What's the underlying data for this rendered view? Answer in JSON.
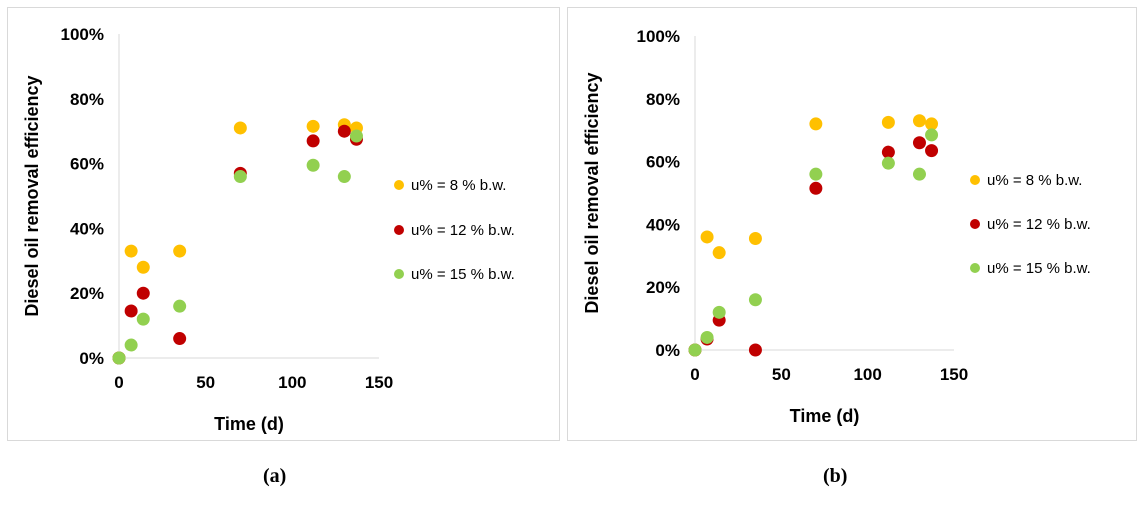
{
  "chart_data": [
    {
      "type": "scatter",
      "title": "",
      "xlabel": "Time (d)",
      "ylabel": "Diesel oil removal efficiency",
      "xlim": [
        0,
        150
      ],
      "ylim": [
        0,
        100
      ],
      "xticks": [
        "0",
        "50",
        "100",
        "150"
      ],
      "yticks": [
        "0%",
        "20%",
        "40%",
        "60%",
        "80%",
        "100%"
      ],
      "grid": false,
      "legend_position": "right",
      "series": [
        {
          "name": "u% = 8 % b.w.",
          "color": "#ffc000",
          "points": [
            [
              0,
              0
            ],
            [
              7,
              33
            ],
            [
              14,
              28
            ],
            [
              35,
              33
            ],
            [
              70,
              71
            ],
            [
              112,
              71.5
            ],
            [
              130,
              72
            ],
            [
              137,
              71
            ]
          ]
        },
        {
          "name": "u% = 12 % b.w.",
          "color": "#c00000",
          "points": [
            [
              0,
              0
            ],
            [
              7,
              14.5
            ],
            [
              14,
              20
            ],
            [
              35,
              6
            ],
            [
              70,
              57
            ],
            [
              112,
              67
            ],
            [
              130,
              70
            ],
            [
              137,
              67.5
            ]
          ]
        },
        {
          "name": "u% = 15 % b.w.",
          "color": "#92d050",
          "points": [
            [
              0,
              0
            ],
            [
              7,
              4
            ],
            [
              14,
              12
            ],
            [
              35,
              16
            ],
            [
              70,
              56
            ],
            [
              112,
              59.5
            ],
            [
              130,
              56
            ],
            [
              137,
              68.5
            ]
          ]
        }
      ]
    },
    {
      "type": "scatter",
      "title": "",
      "xlabel": "Time (d)",
      "ylabel": "Diesel oil removal efficiency",
      "xlim": [
        0,
        150
      ],
      "ylim": [
        0,
        100
      ],
      "xticks": [
        "0",
        "50",
        "100",
        "150"
      ],
      "yticks": [
        "0%",
        "20%",
        "40%",
        "60%",
        "80%",
        "100%"
      ],
      "grid": false,
      "legend_position": "right",
      "series": [
        {
          "name": "u% = 8 % b.w.",
          "color": "#ffc000",
          "points": [
            [
              0,
              0
            ],
            [
              7,
              36
            ],
            [
              14,
              31
            ],
            [
              35,
              35.5
            ],
            [
              70,
              72
            ],
            [
              112,
              72.5
            ],
            [
              130,
              73
            ],
            [
              137,
              72
            ]
          ]
        },
        {
          "name": "u% = 12 % b.w.",
          "color": "#c00000",
          "points": [
            [
              0,
              0
            ],
            [
              7,
              3.5
            ],
            [
              14,
              9.5
            ],
            [
              35,
              0
            ],
            [
              70,
              51.5
            ],
            [
              112,
              63
            ],
            [
              130,
              66
            ],
            [
              137,
              63.5
            ]
          ]
        },
        {
          "name": "u% = 15 % b.w.",
          "color": "#92d050",
          "points": [
            [
              0,
              0
            ],
            [
              7,
              4
            ],
            [
              14,
              12
            ],
            [
              35,
              16
            ],
            [
              70,
              56
            ],
            [
              112,
              59.5
            ],
            [
              130,
              56
            ],
            [
              137,
              68.5
            ]
          ]
        }
      ]
    }
  ],
  "captions": [
    "(a)",
    "(b)"
  ]
}
